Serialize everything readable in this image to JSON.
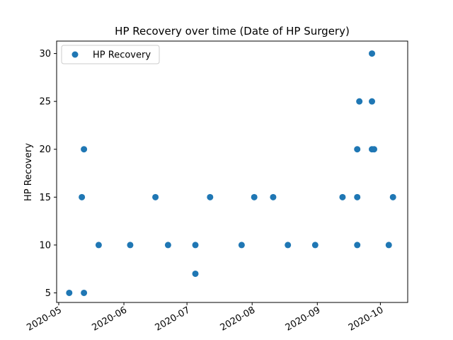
{
  "chart_data": {
    "type": "scatter",
    "title": "HP Recovery over time (Date of HP Surgery)",
    "xlabel": "",
    "ylabel": "HP Recovery",
    "x_type": "date",
    "xlim": [
      "2020-04-30",
      "2020-10-14"
    ],
    "ylim": [
      4,
      31.3
    ],
    "xticks": [
      "2020-05",
      "2020-06",
      "2020-07",
      "2020-08",
      "2020-09",
      "2020-10"
    ],
    "xtick_dates": [
      "2020-05-01",
      "2020-06-01",
      "2020-07-01",
      "2020-08-01",
      "2020-09-01",
      "2020-10-01"
    ],
    "yticks": [
      5,
      10,
      15,
      20,
      25,
      30
    ],
    "grid": false,
    "legend": {
      "position": "top-left",
      "entries": [
        "HP Recovery"
      ]
    },
    "series": [
      {
        "name": "HP Recovery",
        "color": "#1f77b4",
        "marker": "circle",
        "points": [
          {
            "x": "2020-05-06",
            "y": 5
          },
          {
            "x": "2020-05-13",
            "y": 5
          },
          {
            "x": "2020-05-12",
            "y": 15
          },
          {
            "x": "2020-05-13",
            "y": 20
          },
          {
            "x": "2020-05-20",
            "y": 10
          },
          {
            "x": "2020-06-04",
            "y": 10
          },
          {
            "x": "2020-06-16",
            "y": 15
          },
          {
            "x": "2020-06-22",
            "y": 10
          },
          {
            "x": "2020-07-05",
            "y": 10
          },
          {
            "x": "2020-07-05",
            "y": 7
          },
          {
            "x": "2020-07-12",
            "y": 15
          },
          {
            "x": "2020-07-27",
            "y": 10
          },
          {
            "x": "2020-08-02",
            "y": 15
          },
          {
            "x": "2020-08-11",
            "y": 15
          },
          {
            "x": "2020-08-18",
            "y": 10
          },
          {
            "x": "2020-08-31",
            "y": 10
          },
          {
            "x": "2020-09-13",
            "y": 15
          },
          {
            "x": "2020-09-20",
            "y": 20
          },
          {
            "x": "2020-09-20",
            "y": 15
          },
          {
            "x": "2020-09-20",
            "y": 10
          },
          {
            "x": "2020-09-21",
            "y": 25
          },
          {
            "x": "2020-09-27",
            "y": 30
          },
          {
            "x": "2020-09-27",
            "y": 25
          },
          {
            "x": "2020-09-27",
            "y": 20
          },
          {
            "x": "2020-09-28",
            "y": 20
          },
          {
            "x": "2020-10-05",
            "y": 10
          },
          {
            "x": "2020-10-07",
            "y": 15
          }
        ]
      }
    ]
  }
}
